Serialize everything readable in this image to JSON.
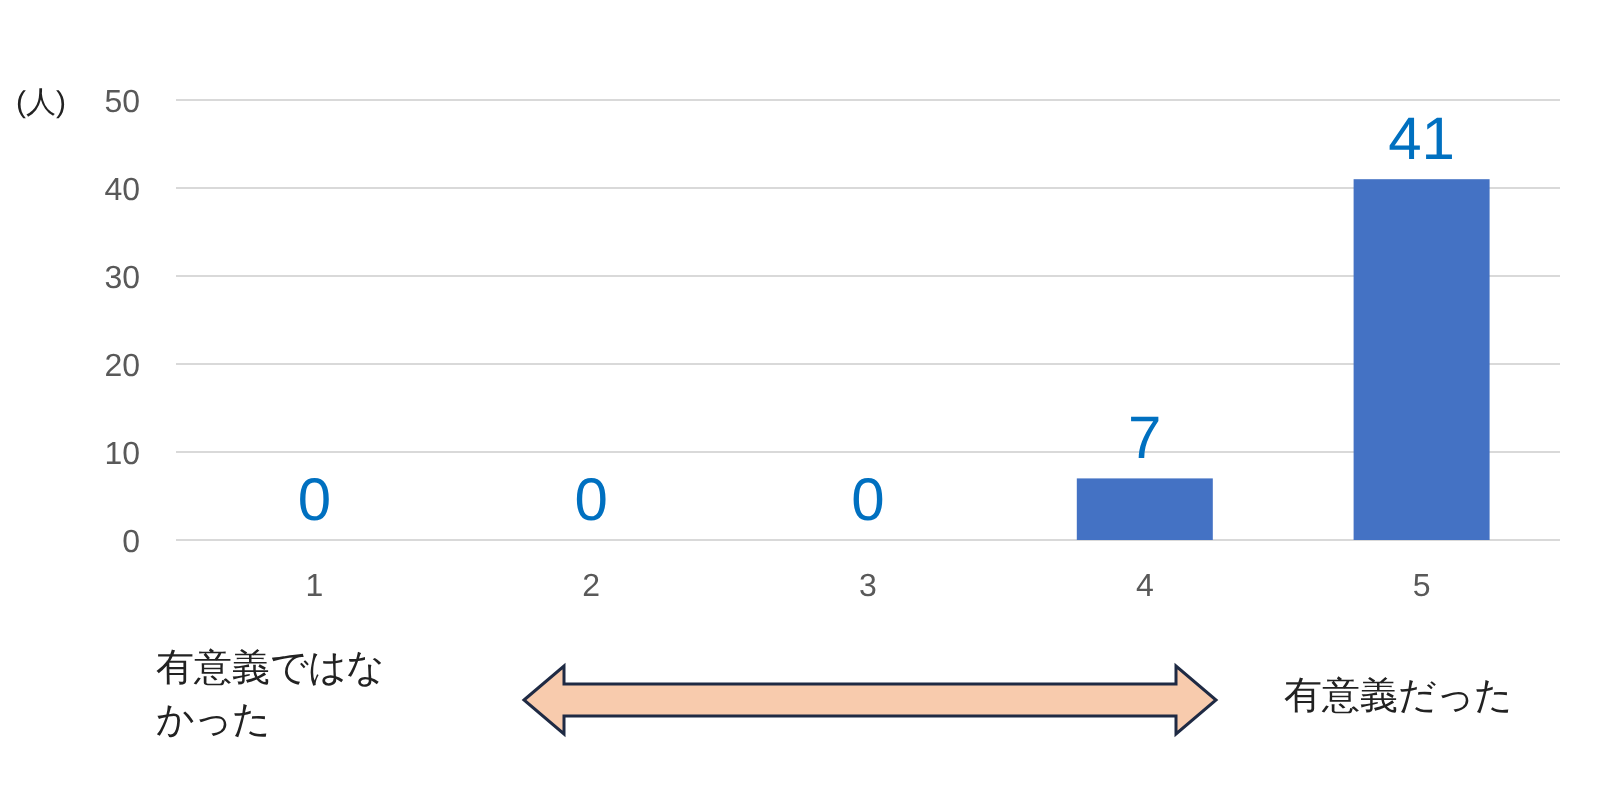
{
  "chart_data": {
    "type": "bar",
    "ylabel": "(人)",
    "categories": [
      "1",
      "2",
      "3",
      "4",
      "5"
    ],
    "values": [
      0,
      0,
      0,
      7,
      41
    ],
    "color": "#4472c4",
    "ylim": [
      0,
      50
    ],
    "yticks": [
      0,
      10,
      20,
      30,
      40,
      50
    ],
    "grid": "y",
    "data_labels": true,
    "annotations": [
      "有意義ではなかった",
      "有意義だった"
    ]
  }
}
